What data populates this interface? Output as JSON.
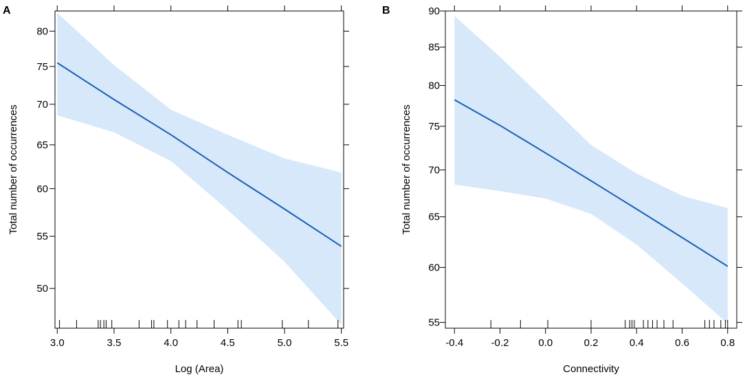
{
  "chart_data": [
    {
      "type": "line",
      "panel_label": "A",
      "xlabel": "Log (Area)",
      "ylabel": "Total number of occurrences",
      "xlim": [
        2.98,
        5.52
      ],
      "ylim": [
        46.5,
        83.0
      ],
      "y_scale": "log",
      "x_ticks": [
        3.0,
        3.5,
        4.0,
        4.5,
        5.0,
        5.5
      ],
      "x_tick_labels": [
        "3.0",
        "3.5",
        "4.0",
        "4.5",
        "5.0",
        "5.5"
      ],
      "y_ticks": [
        50,
        55,
        60,
        65,
        70,
        75,
        80
      ],
      "y_tick_labels": [
        "50",
        "55",
        "60",
        "65",
        "70",
        "75",
        "80"
      ],
      "series": [
        {
          "name": "fit",
          "x": [
            3.0,
            3.5,
            4.0,
            4.5,
            5.0,
            5.5
          ],
          "y": [
            75.5,
            70.6,
            66.2,
            61.8,
            57.8,
            54.0
          ],
          "lower": [
            68.6,
            66.5,
            63.1,
            57.7,
            52.5,
            46.8
          ],
          "upper": [
            82.7,
            75.2,
            69.3,
            66.2,
            63.4,
            61.8
          ]
        }
      ],
      "rug": [
        3.02,
        3.17,
        3.36,
        3.38,
        3.41,
        3.43,
        3.48,
        3.72,
        3.83,
        3.85,
        3.97,
        4.07,
        4.13,
        4.23,
        4.38,
        4.59,
        4.62,
        4.98,
        5.21,
        5.47
      ],
      "colors": {
        "line": "#1a5fb4",
        "band": "#d6e8fa"
      }
    },
    {
      "type": "line",
      "panel_label": "B",
      "xlabel": "Connectivity",
      "ylabel": "Total number of occurrences",
      "xlim": [
        -0.44,
        0.84
      ],
      "ylim": [
        54.5,
        90.0
      ],
      "y_scale": "log",
      "x_ticks": [
        -0.4,
        -0.2,
        0.0,
        0.2,
        0.4,
        0.6,
        0.8
      ],
      "x_tick_labels": [
        "-0.4",
        "-0.2",
        "0.0",
        "0.2",
        "0.4",
        "0.6",
        "0.8"
      ],
      "y_ticks": [
        55,
        60,
        65,
        70,
        75,
        80,
        85,
        90
      ],
      "y_tick_labels": [
        "55",
        "60",
        "65",
        "70",
        "75",
        "80",
        "85",
        "90"
      ],
      "series": [
        {
          "name": "fit",
          "x": [
            -0.4,
            -0.2,
            0.0,
            0.2,
            0.4,
            0.6,
            0.8
          ],
          "y": [
            78.2,
            75.1,
            71.9,
            68.8,
            65.8,
            62.9,
            60.1
          ],
          "lower": [
            68.4,
            67.7,
            66.9,
            65.3,
            62.2,
            58.5,
            54.9
          ],
          "upper": [
            89.3,
            83.7,
            78.1,
            72.8,
            69.6,
            67.2,
            65.9
          ]
        }
      ],
      "rug": [
        -0.24,
        -0.11,
        0.01,
        0.2,
        0.35,
        0.37,
        0.38,
        0.39,
        0.43,
        0.45,
        0.47,
        0.49,
        0.52,
        0.56,
        0.7,
        0.72,
        0.74,
        0.77,
        0.79,
        0.8
      ],
      "colors": {
        "line": "#1a5fb4",
        "band": "#d6e8fa"
      }
    }
  ]
}
